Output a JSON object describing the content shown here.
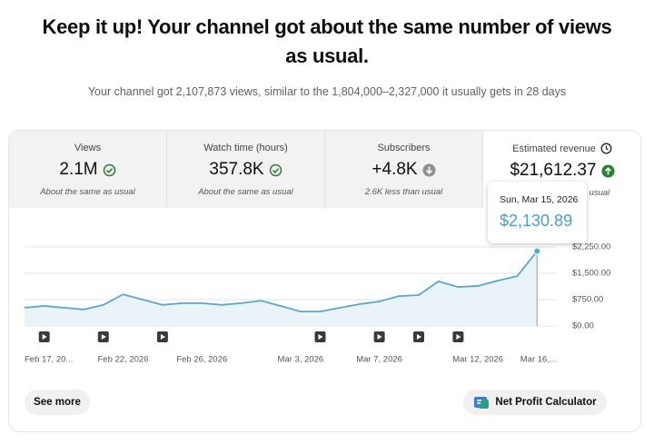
{
  "header": {
    "title": "Keep it up! Your channel got about the same number of views as usual.",
    "subtitle": "Your channel got 2,107,873 views, similar to the 1,804,000–2,327,000 it usually gets in 28 days"
  },
  "metrics": [
    {
      "label": "Views",
      "value": "2.1M",
      "note": "About the same as usual"
    },
    {
      "label": "Watch time (hours)",
      "value": "357.8K",
      "note": "About the same as usual"
    },
    {
      "label": "Subscribers",
      "value": "+4.8K",
      "note": "2.6K less than usual"
    },
    {
      "label": "Estimated revenue",
      "value": "$21,612.37",
      "note": "About the same as usual"
    }
  ],
  "tooltip": {
    "date": "Sun, Mar 15, 2026",
    "value": "$2,130.89"
  },
  "chart_data": {
    "type": "line",
    "color": "#5aa7cc",
    "area_color": "#e9f3f8",
    "grid": true,
    "categories": [
      "Feb 17, 20...",
      null,
      null,
      null,
      null,
      "Feb 22, 2026",
      null,
      null,
      null,
      "Feb 26, 2026",
      null,
      null,
      null,
      null,
      "Mar 3, 2026",
      null,
      null,
      null,
      "Mar 7, 2026",
      null,
      null,
      null,
      null,
      "Mar 12, 2026",
      null,
      null,
      null,
      "Mar 16,..."
    ],
    "values": [
      520,
      570,
      520,
      470,
      600,
      900,
      750,
      600,
      650,
      650,
      600,
      650,
      720,
      570,
      410,
      410,
      520,
      620,
      700,
      850,
      880,
      1270,
      1110,
      1140,
      1290,
      1420,
      2130.89,
      null
    ],
    "ylim": [
      0,
      2250
    ],
    "yticks": [
      {
        "value": 0,
        "label": "$0.00"
      },
      {
        "value": 750,
        "label": "$750.00"
      },
      {
        "value": 1500,
        "label": "$1,500.00"
      },
      {
        "value": 2250,
        "label": "$2,250.00"
      }
    ]
  },
  "buttons": {
    "see_more": "See more",
    "calculator": "Net Profit Calculator"
  }
}
